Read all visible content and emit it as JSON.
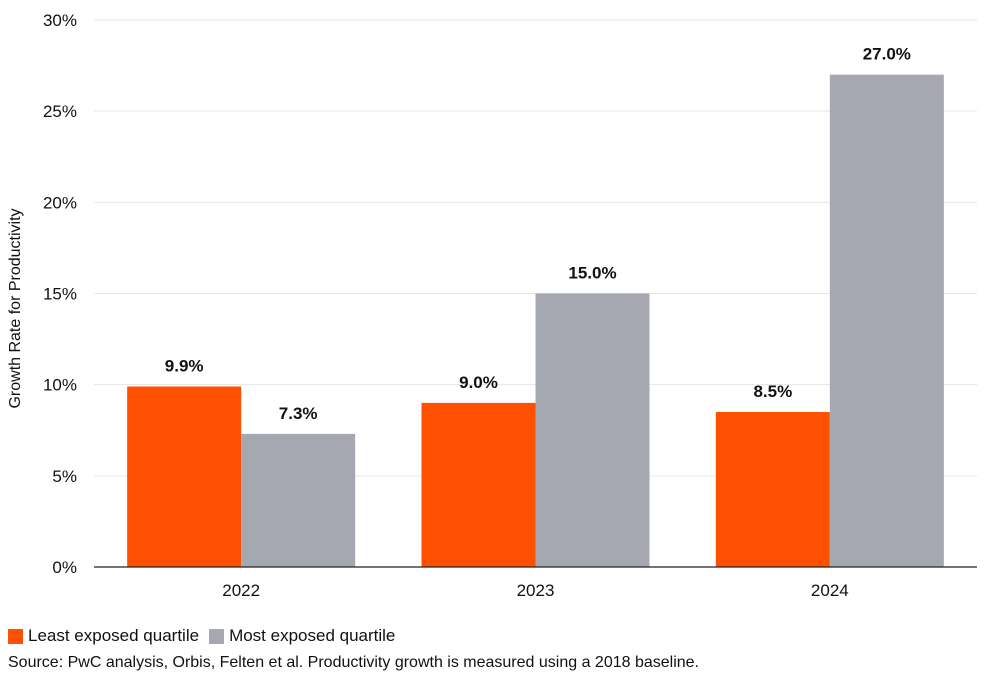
{
  "chart_data": {
    "type": "bar",
    "categories": [
      "2022",
      "2023",
      "2024"
    ],
    "series": [
      {
        "name": "Least exposed quartile",
        "values": [
          9.9,
          9.0,
          8.5
        ],
        "labels": [
          "9.9%",
          "9.0%",
          "8.5%"
        ],
        "color": "#fe5000"
      },
      {
        "name": "Most exposed quartile",
        "values": [
          7.3,
          15.0,
          27.0
        ],
        "labels": [
          "7.3%",
          "15.0%",
          "27.0%"
        ],
        "color": "#a5a8b0"
      }
    ],
    "title": "",
    "xlabel": "",
    "ylabel": "Growth Rate for Productivity",
    "ylim": [
      0,
      30
    ],
    "yticks": [
      0,
      5,
      10,
      15,
      20,
      25,
      30
    ],
    "ytick_labels": [
      "0%",
      "5%",
      "10%",
      "15%",
      "20%",
      "25%",
      "30%"
    ],
    "grid": true,
    "legend_position": "bottom-left"
  },
  "legend": {
    "items": [
      {
        "label": "Least exposed quartile",
        "color": "#fe5000"
      },
      {
        "label": "Most exposed quartile",
        "color": "#a5a8b0"
      }
    ]
  },
  "source_note": "Source: PwC analysis, Orbis, Felten et al. Productivity growth is measured using a 2018 baseline."
}
